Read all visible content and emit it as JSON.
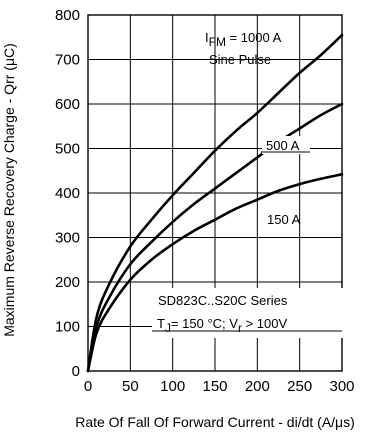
{
  "chart_data": {
    "type": "line",
    "title": "",
    "xlabel": "Rate Of Fall Of Forward Current - di/dt (A/μs)",
    "ylabel": "Maximum Reverse Recovery Charge - Qrr (μC)",
    "xlim": [
      0,
      300
    ],
    "ylim": [
      0,
      800
    ],
    "xticks": [
      "0",
      "50",
      "100",
      "150",
      "200",
      "250",
      "300"
    ],
    "yticks": [
      "0",
      "100",
      "200",
      "300",
      "400",
      "500",
      "600",
      "700",
      "800"
    ],
    "grid": true,
    "series": [
      {
        "name": "1000 A",
        "x": [
          0,
          10,
          25,
          50,
          75,
          100,
          125,
          150,
          175,
          200,
          225,
          250,
          275,
          300
        ],
        "y": [
          0,
          120,
          195,
          280,
          340,
          395,
          445,
          495,
          540,
          580,
          625,
          670,
          710,
          755
        ]
      },
      {
        "name": "500 A",
        "x": [
          0,
          10,
          25,
          50,
          75,
          100,
          125,
          150,
          175,
          200,
          225,
          250,
          275,
          300
        ],
        "y": [
          0,
          100,
          165,
          240,
          290,
          335,
          375,
          410,
          445,
          480,
          515,
          545,
          575,
          600
        ]
      },
      {
        "name": "150 A",
        "x": [
          0,
          10,
          25,
          50,
          75,
          100,
          125,
          150,
          175,
          200,
          225,
          250,
          275,
          300
        ],
        "y": [
          0,
          85,
          140,
          205,
          250,
          285,
          315,
          340,
          365,
          385,
          405,
          420,
          432,
          442
        ]
      }
    ],
    "annotations": {
      "ifm_prefix": "I",
      "ifm_sub": "FM",
      "ifm_value": " = 1000 A",
      "pulse": "Sine Pulse",
      "label_500": "500 A",
      "label_150": "150 A",
      "device": "SD823C..S20C Series",
      "cond_t": "T",
      "cond_t_sub": "J",
      "cond_mid": "= 150 °C; V",
      "cond_v_sub": "r",
      "cond_end": " > 100V"
    }
  }
}
